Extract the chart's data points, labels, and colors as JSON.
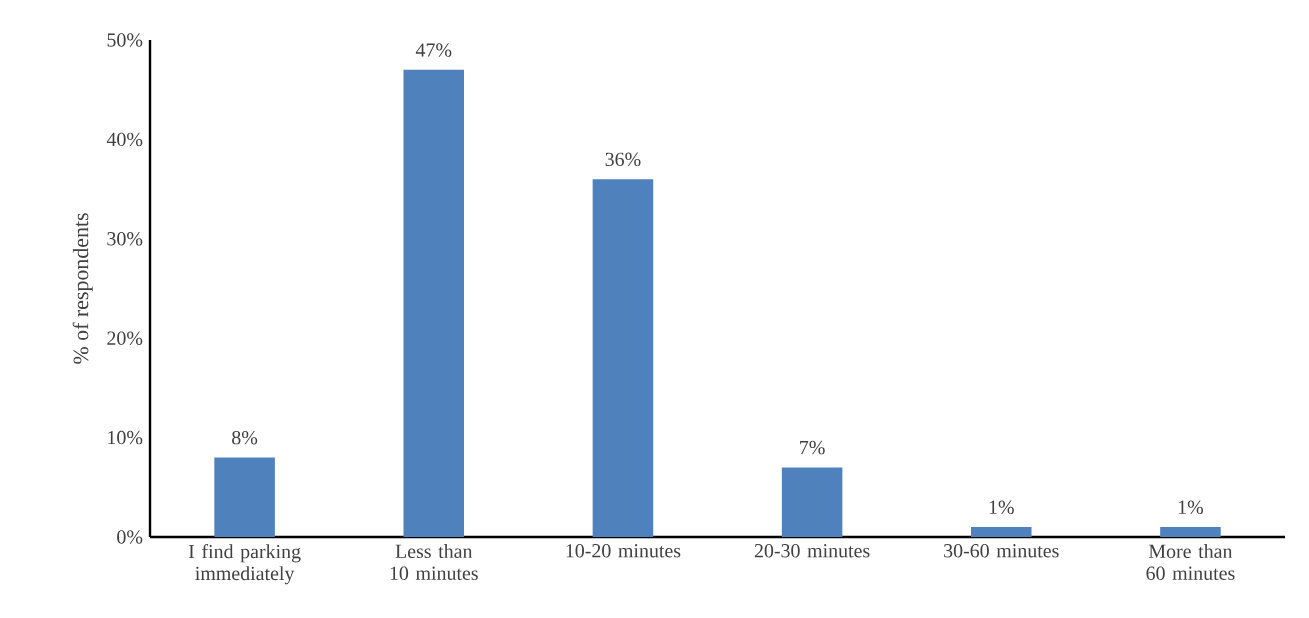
{
  "chart_data": {
    "type": "bar",
    "ylabel": "% of respondents",
    "categories": [
      "I find parking immediately",
      "Less than 10 minutes",
      "10-20 minutes",
      "20-30 minutes",
      "30-60 minutes",
      "More than 60 minutes"
    ],
    "values": [
      8,
      47,
      36,
      7,
      1,
      1
    ],
    "value_labels": [
      "8%",
      "47%",
      "36%",
      "7%",
      "1%",
      "1%"
    ],
    "color": "#4f81bd",
    "ylim": [
      0,
      50
    ],
    "yticks": [
      {
        "value": 0,
        "label": "0%"
      },
      {
        "value": 10,
        "label": "10%"
      },
      {
        "value": 20,
        "label": "20%"
      },
      {
        "value": 30,
        "label": "30%"
      },
      {
        "value": 40,
        "label": "40%"
      },
      {
        "value": 50,
        "label": "50%"
      }
    ],
    "grid": false,
    "legend": false
  }
}
